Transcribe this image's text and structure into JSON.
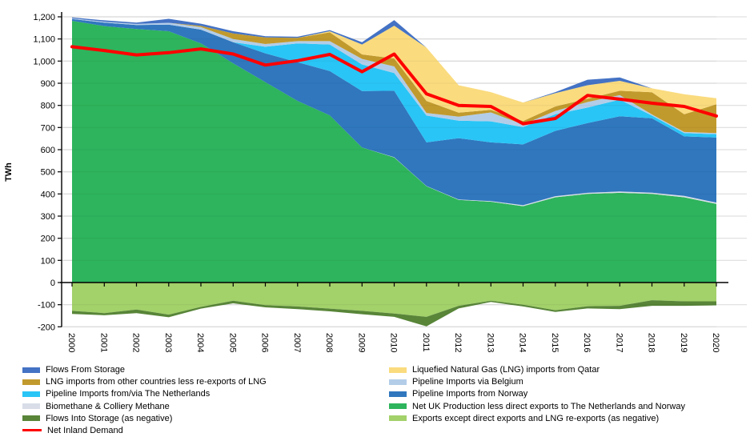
{
  "chart_data": {
    "type": "area",
    "title": "",
    "ylabel": "TWh",
    "ylim": [
      -200,
      1200
    ],
    "ytick_step": 100,
    "grid_color": "#D9D9D9",
    "axis_color": "#000000",
    "x": [
      2000,
      2001,
      2002,
      2003,
      2004,
      2005,
      2006,
      2007,
      2008,
      2009,
      2010,
      2011,
      2012,
      2013,
      2014,
      2015,
      2016,
      2017,
      2018,
      2019,
      2020
    ],
    "series": [
      {
        "name": "Net UK Production less direct exports to The Netherlands and Norway",
        "color": "#2EB45C",
        "values": [
          1182,
          1158,
          1145,
          1135,
          1080,
          990,
          905,
          820,
          755,
          610,
          565,
          435,
          373,
          365,
          345,
          385,
          400,
          405,
          400,
          385,
          355
        ]
      },
      {
        "name": "Biomethane & Colliery Methane",
        "color": "#D8DDE8",
        "values": [
          0,
          0,
          0,
          0,
          0,
          0,
          0,
          0,
          0,
          0,
          1,
          1,
          2,
          3,
          4,
          5,
          5,
          6,
          6,
          6,
          6
        ]
      },
      {
        "name": "Pipeline Imports from Norway",
        "color": "#3077BE",
        "values": [
          8,
          16,
          18,
          30,
          62,
          95,
          130,
          175,
          200,
          255,
          300,
          197,
          277,
          265,
          275,
          295,
          315,
          340,
          336,
          269,
          294
        ]
      },
      {
        "name": "Pipeline Imports from/via The Netherlands",
        "color": "#29C5F6",
        "values": [
          0,
          0,
          0,
          0,
          0,
          0,
          30,
          85,
          120,
          120,
          80,
          121,
          79,
          95,
          78,
          75,
          70,
          75,
          12,
          15,
          15
        ]
      },
      {
        "name": "Pipeline Imports via Belgium",
        "color": "#B3CDE8",
        "values": [
          3,
          4,
          5,
          8,
          12,
          15,
          12,
          10,
          15,
          25,
          30,
          12,
          18,
          40,
          12,
          15,
          25,
          20,
          5,
          5,
          5
        ]
      },
      {
        "name": "LNG imports from other countries less re-exports of LNG",
        "color": "#C19A2E",
        "values": [
          0,
          0,
          0,
          0,
          5,
          25,
          30,
          15,
          40,
          20,
          36,
          54,
          18,
          12,
          15,
          20,
          15,
          20,
          100,
          80,
          130
        ]
      },
      {
        "name": "Liquefied Natural Gas (LNG) imports from Qatar",
        "color": "#FADB7E",
        "values": [
          0,
          0,
          0,
          0,
          0,
          0,
          0,
          0,
          5,
          45,
          148,
          241,
          124,
          80,
          84,
          60,
          61,
          45,
          18,
          90,
          27
        ]
      },
      {
        "name": "Flows From Storage",
        "color": "#4472C4",
        "values": [
          4,
          6,
          6,
          18,
          10,
          10,
          5,
          5,
          5,
          10,
          25,
          0,
          0,
          0,
          0,
          5,
          25,
          15,
          0,
          0,
          0
        ]
      }
    ],
    "negative_series": [
      {
        "name": "Exports except direct exports and LNG re-exports (as negative)",
        "color": "#A3D16A",
        "values": [
          -128,
          -138,
          -122,
          -145,
          -110,
          -82,
          -102,
          -108,
          -118,
          -128,
          -140,
          -155,
          -105,
          -82,
          -100,
          -125,
          -107,
          -105,
          -80,
          -85,
          -85
        ]
      },
      {
        "name": "Flows Into Storage (as negative)",
        "color": "#588538",
        "values": [
          -14,
          -10,
          -16,
          -12,
          -8,
          -12,
          -10,
          -12,
          -12,
          -15,
          -15,
          -43,
          -12,
          -6,
          -8,
          -8,
          -10,
          -15,
          -25,
          -20,
          -18
        ]
      }
    ],
    "line_series": {
      "name": "Net Inland Demand",
      "color": "#FF0000",
      "values": [
        1065,
        1048,
        1028,
        1038,
        1055,
        1032,
        982,
        1002,
        1030,
        952,
        1032,
        852,
        800,
        795,
        717,
        741,
        845,
        828,
        810,
        795,
        752
      ]
    }
  },
  "legend": {
    "left": [
      {
        "label": "Flows From Storage",
        "color": "#4472C4",
        "kind": "bar"
      },
      {
        "label": "LNG imports from other countries less re-exports of LNG",
        "color": "#C19A2E",
        "kind": "bar"
      },
      {
        "label": "Pipeline Imports from/via The Netherlands",
        "color": "#29C5F6",
        "kind": "bar"
      },
      {
        "label": "Biomethane & Colliery Methane",
        "color": "#D8DDE8",
        "kind": "bar"
      },
      {
        "label": "Flows Into Storage (as negative)",
        "color": "#588538",
        "kind": "bar"
      },
      {
        "label": "Net Inland Demand",
        "color": "#FF0000",
        "kind": "line"
      }
    ],
    "right": [
      {
        "label": "Liquefied Natural Gas (LNG) imports from Qatar",
        "color": "#FADB7E",
        "kind": "bar"
      },
      {
        "label": "Pipeline Imports via Belgium",
        "color": "#B3CDE8",
        "kind": "bar"
      },
      {
        "label": "Pipeline Imports from Norway",
        "color": "#3077BE",
        "kind": "bar"
      },
      {
        "label": "Net UK Production less direct exports to The Netherlands and Norway",
        "color": "#2EB45C",
        "kind": "bar"
      },
      {
        "label": "Exports except direct exports and LNG re-exports (as negative)",
        "color": "#A3D16A",
        "kind": "bar"
      }
    ]
  }
}
